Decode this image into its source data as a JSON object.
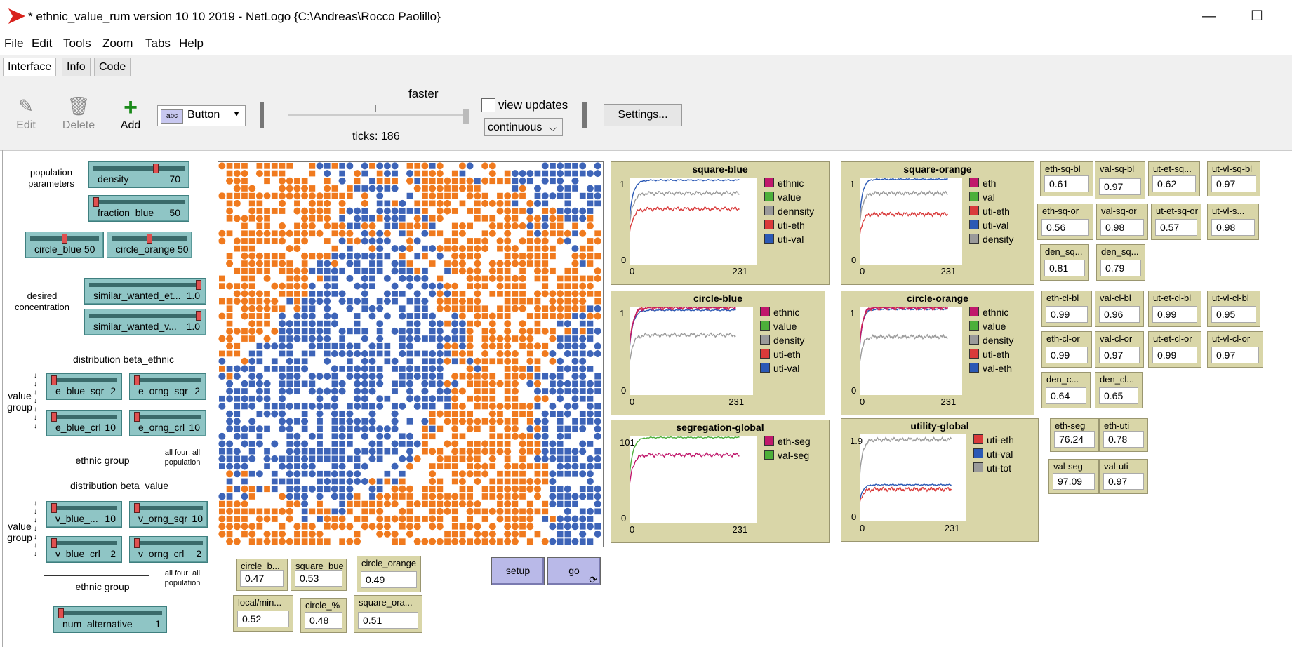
{
  "window": {
    "title": "* ethnic_value_rum version 10 10 2019 - NetLogo {C:\\Andreas\\Rocco Paolillo}",
    "minimize": "—",
    "maximize": "☐"
  },
  "menu": [
    "File",
    "Edit",
    "Tools",
    "Zoom",
    "Tabs",
    "Help"
  ],
  "tabs": [
    "Interface",
    "Info",
    "Code"
  ],
  "toolbar": {
    "edit": "Edit",
    "delete": "Delete",
    "add": "Add",
    "widget_type": "Button",
    "faster": "faster",
    "ticks": "ticks: 186",
    "view_updates": "view updates",
    "update_mode": "continuous",
    "settings": "Settings..."
  },
  "sliders": {
    "population_note": "population parameters",
    "density": {
      "label": "density",
      "value": "70",
      "fraction": 0.7
    },
    "fraction_blue": {
      "label": "fraction_blue",
      "value": "50",
      "fraction": 0.0
    },
    "circle_blue": {
      "label": "circle_blue 50",
      "fraction": 0.5
    },
    "circle_orange": {
      "label": "circle_orange 50",
      "fraction": 0.5
    },
    "desired_note": "desired concentration",
    "similar_eth": {
      "label": "similar_wanted_et...",
      "value": "1.0",
      "fraction": 1.0
    },
    "similar_val": {
      "label": "similar_wanted_v...",
      "value": "1.0",
      "fraction": 1.0
    },
    "beta_ethnic_title": "distribution beta_ethnic",
    "e_blue_sqr": {
      "label": "e_blue_sqr",
      "value": "2",
      "fraction": 0.0
    },
    "e_orng_sqr": {
      "label": "e_orng_sqr",
      "value": "2",
      "fraction": 0.0
    },
    "e_blue_crl": {
      "label": "e_blue_crl",
      "value": "10",
      "fraction": 0.0
    },
    "e_orng_crl": {
      "label": "e_orng_crl",
      "value": "10",
      "fraction": 0.0
    },
    "value_group": "value group",
    "ethnic_group": "ethnic group",
    "all_four": "all four: all population",
    "beta_value_title": "distribution beta_value",
    "v_blue_sqr": {
      "label": "v_blue_...",
      "value": "10",
      "fraction": 0.0
    },
    "v_orng_sqr": {
      "label": "v_orng_sqr",
      "value": "10",
      "fraction": 0.0
    },
    "v_blue_crl": {
      "label": "v_blue_crl",
      "value": "2",
      "fraction": 0.0
    },
    "v_orng_crl": {
      "label": "v_orng_crl",
      "value": "2",
      "fraction": 0.0
    },
    "num_alternative": {
      "label": "num_alternative",
      "value": "1",
      "fraction": 0.0
    }
  },
  "bottom_monitors": [
    {
      "label": "circle_b...",
      "value": "0.47"
    },
    {
      "label": "square_bue",
      "value": "0.53"
    },
    {
      "label": "circle_orange",
      "value": "0.49"
    },
    {
      "label": "local/min...",
      "value": "0.52"
    },
    {
      "label": "circle_%",
      "value": "0.48"
    },
    {
      "label": "square_ora...",
      "value": "0.51"
    }
  ],
  "buttons": {
    "setup": "setup",
    "go": "go"
  },
  "plots": [
    {
      "title": "square-blue",
      "ymax": "1",
      "ymin": "0",
      "xmin": "0",
      "xmax": "231",
      "legend": [
        "ethnic",
        "value",
        "dennsity",
        "uti-eth",
        "uti-val"
      ],
      "colors": [
        "#c0186c",
        "#4caf3a",
        "#9a9a9a",
        "#d93a3a",
        "#2b59b5"
      ]
    },
    {
      "title": "square-orange",
      "ymax": "1",
      "ymin": "0",
      "xmin": "0",
      "xmax": "231",
      "legend": [
        "eth",
        "val",
        "uti-eth",
        "uti-val",
        "density"
      ],
      "colors": [
        "#c0186c",
        "#4caf3a",
        "#d93a3a",
        "#2b59b5",
        "#9a9a9a"
      ]
    },
    {
      "title": "circle-blue",
      "ymax": "1",
      "ymin": "0",
      "xmin": "0",
      "xmax": "231",
      "legend": [
        "ethnic",
        "value",
        "density",
        "uti-eth",
        "uti-val"
      ],
      "colors": [
        "#c0186c",
        "#4caf3a",
        "#9a9a9a",
        "#d93a3a",
        "#2b59b5"
      ]
    },
    {
      "title": "circle-orange",
      "ymax": "1",
      "ymin": "0",
      "xmin": "0",
      "xmax": "231",
      "legend": [
        "ethnic",
        "value",
        "density",
        "uti-eth",
        "val-eth"
      ],
      "colors": [
        "#c0186c",
        "#4caf3a",
        "#9a9a9a",
        "#d93a3a",
        "#2b59b5"
      ]
    },
    {
      "title": "segregation-global",
      "ymax": "101",
      "ymin": "0",
      "xmin": "0",
      "xmax": "231",
      "legend": [
        "eth-seg",
        "val-seg"
      ],
      "colors": [
        "#c0186c",
        "#4caf3a"
      ]
    },
    {
      "title": "utility-global",
      "ymax": "1.9",
      "ymin": "0",
      "xmin": "0",
      "xmax": "231",
      "legend": [
        "uti-eth",
        "uti-val",
        "uti-tot"
      ],
      "colors": [
        "#d93a3a",
        "#2b59b5",
        "#9a9a9a"
      ]
    }
  ],
  "right_monitors": [
    {
      "label": "eth-sq-bl",
      "value": "0.61"
    },
    {
      "label": "val-sq-bl",
      "value": "0.97"
    },
    {
      "label": "ut-et-sq...",
      "value": "0.62"
    },
    {
      "label": "ut-vl-sq-bl",
      "value": "0.97"
    },
    {
      "label": "eth-sq-or",
      "value": "0.56"
    },
    {
      "label": "val-sq-or",
      "value": "0.98"
    },
    {
      "label": "ut-et-sq-or",
      "value": "0.57"
    },
    {
      "label": "ut-vl-s...",
      "value": "0.98"
    },
    {
      "label": "den_sq...",
      "value": "0.81"
    },
    {
      "label": "den_sq...",
      "value": "0.79"
    },
    {
      "label": "eth-cl-bl",
      "value": "0.99"
    },
    {
      "label": "val-cl-bl",
      "value": "0.96"
    },
    {
      "label": "ut-et-cl-bl",
      "value": "0.99"
    },
    {
      "label": "ut-vl-cl-bl",
      "value": "0.95"
    },
    {
      "label": "eth-cl-or",
      "value": "0.99"
    },
    {
      "label": "val-cl-or",
      "value": "0.97"
    },
    {
      "label": "ut-et-cl-or",
      "value": "0.99"
    },
    {
      "label": "ut-vl-cl-or",
      "value": "0.97"
    },
    {
      "label": "den_c...",
      "value": "0.64"
    },
    {
      "label": "den_cl...",
      "value": "0.65"
    },
    {
      "label": "eth-seg",
      "value": "76.24"
    },
    {
      "label": "eth-uti",
      "value": "0.78"
    },
    {
      "label": "val-seg",
      "value": "97.09"
    },
    {
      "label": "val-uti",
      "value": "0.97"
    }
  ],
  "colors": {
    "orange": "#f07a1e",
    "blue": "#3d64b8",
    "slider": "#8fc5c5",
    "monitor": "#d9d6a8",
    "button": "#b9b9e8"
  }
}
